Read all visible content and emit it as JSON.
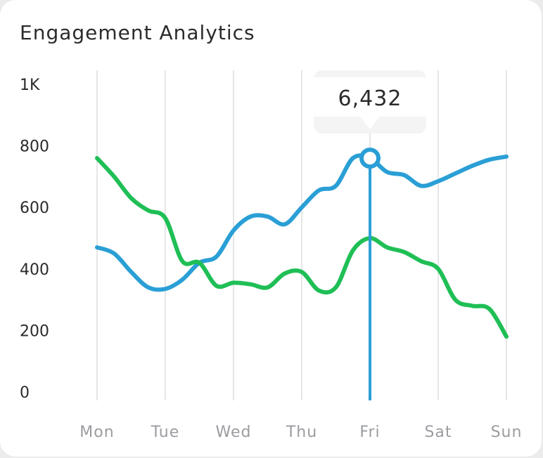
{
  "card": {
    "title": "Engagement Analytics"
  },
  "tooltip": {
    "value": "6,432",
    "category": "Fri"
  },
  "colors": {
    "series_blue": "#2a9fd6",
    "series_green": "#1fbf56",
    "grid": "#e6e6e6",
    "x_label": "#9a9ca0"
  },
  "chart_data": {
    "type": "line",
    "title": "Engagement Analytics",
    "xlabel": "",
    "ylabel": "",
    "ylim": [
      0,
      1000
    ],
    "yticks": [
      {
        "value": 1000,
        "label": "1K"
      },
      {
        "value": 800,
        "label": "800"
      },
      {
        "value": 600,
        "label": "600"
      },
      {
        "value": 400,
        "label": "400"
      },
      {
        "value": 200,
        "label": "200"
      },
      {
        "value": 0,
        "label": "0"
      }
    ],
    "categories": [
      "Mon",
      "Tue",
      "Wed",
      "Thu",
      "Fri",
      "Sat",
      "Sun"
    ],
    "grid": "vertical",
    "legend": "none",
    "highlight_category": "Fri",
    "series": [
      {
        "color": "#2a9fd6",
        "x": [
          0,
          0.25,
          0.5,
          0.75,
          1,
          1.25,
          1.5,
          1.75,
          2,
          2.25,
          2.5,
          2.75,
          3,
          3.25,
          3.5,
          3.75,
          4,
          4.25,
          4.5,
          4.75,
          5,
          5.25,
          5.5,
          5.75,
          6
        ],
        "values": [
          470,
          450,
          390,
          340,
          335,
          365,
          420,
          440,
          525,
          570,
          570,
          545,
          600,
          655,
          670,
          760,
          760,
          715,
          705,
          670,
          685,
          710,
          735,
          755,
          765
        ]
      },
      {
        "color": "#1fbf56",
        "x": [
          0,
          0.25,
          0.5,
          0.75,
          1,
          1.25,
          1.5,
          1.75,
          2,
          2.25,
          2.5,
          2.75,
          3,
          3.25,
          3.5,
          3.75,
          4,
          4.25,
          4.5,
          4.75,
          5,
          5.25,
          5.5,
          5.75,
          6
        ],
        "values": [
          760,
          700,
          630,
          590,
          565,
          425,
          420,
          345,
          355,
          350,
          340,
          385,
          390,
          330,
          340,
          460,
          500,
          470,
          455,
          425,
          400,
          300,
          280,
          270,
          180
        ]
      }
    ]
  }
}
